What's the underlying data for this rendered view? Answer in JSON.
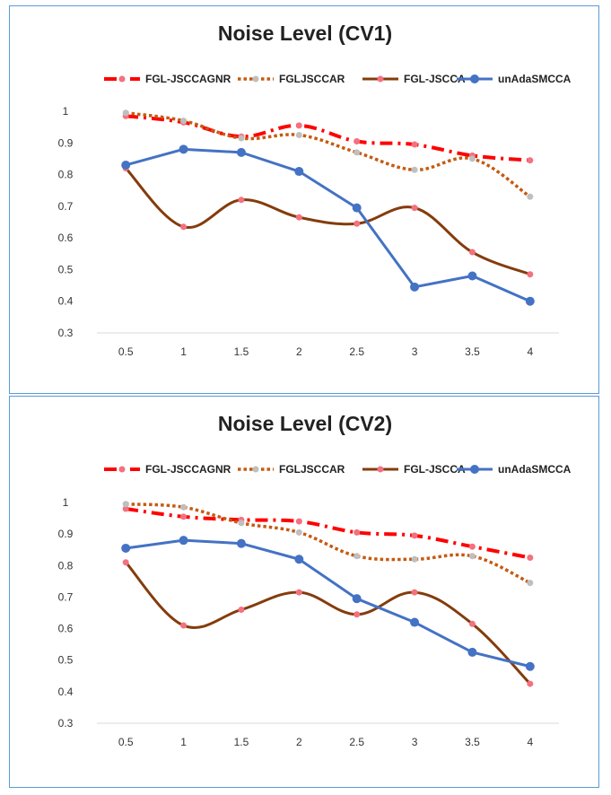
{
  "colors": {
    "FGL-JSCCAGNR": "#ff0000",
    "FGLJSCCAR": "#c55a11",
    "FGL-JSCCA": "#843c0c",
    "unAdaSMCCA": "#4472c4",
    "marker_red_series": "#f4717f",
    "marker_gray": "#bfbfbf",
    "panel_border": "#5b9bd5"
  },
  "chart_data": [
    {
      "type": "line",
      "title": "Noise Level (CV1)",
      "xlabel": "",
      "ylabel": "",
      "categories": [
        "0.5",
        "1",
        "1.5",
        "2",
        "2.5",
        "3",
        "3.5",
        "4"
      ],
      "y_ticks": [
        "0.3",
        "0.4",
        "0.5",
        "0.6",
        "0.7",
        "0.8",
        "0.9",
        "1"
      ],
      "ylim": [
        0.3,
        1.0
      ],
      "grid": false,
      "legend_position": "top",
      "series": [
        {
          "name": "FGL-JSCCAGNR",
          "style": "dash-dot",
          "values": [
            0.985,
            0.965,
            0.92,
            0.955,
            0.905,
            0.895,
            0.86,
            0.845
          ]
        },
        {
          "name": "FGLJSCCAR",
          "style": "dotted",
          "values": [
            0.995,
            0.97,
            0.915,
            0.925,
            0.87,
            0.815,
            0.85,
            0.73
          ]
        },
        {
          "name": "FGL-JSCCA",
          "style": "solid-smooth",
          "values": [
            0.82,
            0.635,
            0.72,
            0.665,
            0.645,
            0.695,
            0.555,
            0.485
          ]
        },
        {
          "name": "unAdaSMCCA",
          "style": "solid",
          "values": [
            0.83,
            0.88,
            0.87,
            0.81,
            0.695,
            0.445,
            0.48,
            0.4
          ]
        }
      ]
    },
    {
      "type": "line",
      "title": "Noise Level (CV2)",
      "xlabel": "",
      "ylabel": "",
      "categories": [
        "0.5",
        "1",
        "1.5",
        "2",
        "2.5",
        "3",
        "3.5",
        "4"
      ],
      "y_ticks": [
        "0.3",
        "0.4",
        "0.5",
        "0.6",
        "0.7",
        "0.8",
        "0.9",
        "1"
      ],
      "ylim": [
        0.3,
        1.0
      ],
      "grid": false,
      "legend_position": "top",
      "series": [
        {
          "name": "FGL-JSCCAGNR",
          "style": "dash-dot",
          "values": [
            0.98,
            0.955,
            0.945,
            0.94,
            0.905,
            0.895,
            0.86,
            0.825
          ]
        },
        {
          "name": "FGLJSCCAR",
          "style": "dotted",
          "values": [
            0.995,
            0.985,
            0.935,
            0.905,
            0.83,
            0.82,
            0.83,
            0.745
          ]
        },
        {
          "name": "FGL-JSCCA",
          "style": "solid-smooth",
          "values": [
            0.81,
            0.61,
            0.66,
            0.715,
            0.645,
            0.715,
            0.615,
            0.425
          ]
        },
        {
          "name": "unAdaSMCCA",
          "style": "solid",
          "values": [
            0.855,
            0.88,
            0.87,
            0.82,
            0.695,
            0.62,
            0.525,
            0.48
          ]
        }
      ]
    }
  ]
}
